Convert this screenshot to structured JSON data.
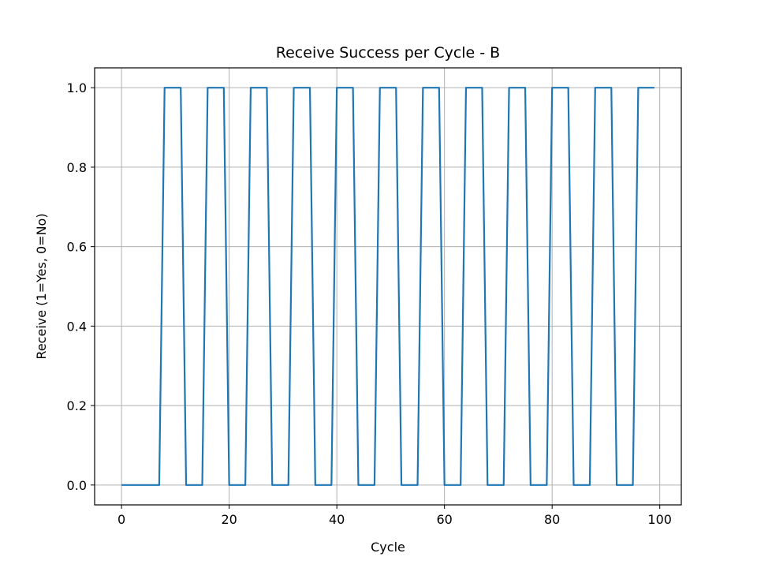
{
  "chart_data": {
    "type": "line",
    "title": "Receive Success per Cycle - B",
    "xlabel": "Cycle",
    "ylabel": "Receive (1=Yes, 0=No)",
    "xlim": [
      -5,
      104
    ],
    "ylim": [
      -0.05,
      1.05
    ],
    "xticks": [
      0,
      20,
      40,
      60,
      80,
      100
    ],
    "yticks": [
      "0.0",
      "0.2",
      "0.4",
      "0.6",
      "0.8",
      "1.0"
    ],
    "grid": true,
    "series": [
      {
        "color": "#1f77b4",
        "x": [
          0,
          7,
          8,
          11,
          12,
          15,
          16,
          19,
          20,
          23,
          24,
          27,
          28,
          31,
          32,
          35,
          36,
          39,
          40,
          43,
          44,
          47,
          48,
          51,
          52,
          55,
          56,
          59,
          60,
          63,
          64,
          67,
          68,
          71,
          72,
          75,
          76,
          79,
          80,
          83,
          84,
          87,
          88,
          91,
          92,
          95,
          96,
          99
        ],
        "y": [
          0,
          0,
          1,
          1,
          0,
          0,
          1,
          1,
          0,
          0,
          1,
          1,
          0,
          0,
          1,
          1,
          0,
          0,
          1,
          1,
          0,
          0,
          1,
          1,
          0,
          0,
          1,
          1,
          0,
          0,
          1,
          1,
          0,
          0,
          1,
          1,
          0,
          0,
          1,
          1,
          0,
          0,
          1,
          1,
          0,
          0,
          1,
          1
        ]
      }
    ]
  }
}
